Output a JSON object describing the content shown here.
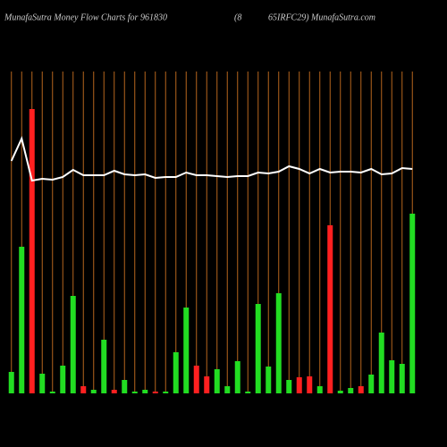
{
  "chart_data": {
    "type": "bar",
    "title": "MunafaSutra  Money Flow  Charts for 961830",
    "subtitle": "(8",
    "source": "65IRFC29) MunafaSutra.com",
    "categories": [
      null,
      null,
      null,
      null,
      null,
      null,
      null,
      null,
      null,
      null,
      null,
      null,
      null,
      null,
      null,
      null,
      null,
      null,
      null,
      null,
      null,
      null,
      null,
      null,
      null,
      null,
      null,
      null,
      null,
      null,
      null,
      null,
      null,
      null,
      null,
      null,
      null,
      null,
      null,
      null
    ],
    "ylim": [
      0,
      360
    ],
    "series": [
      {
        "type": "bar",
        "values": [
          24,
          164,
          318,
          22,
          2,
          31,
          109,
          8,
          4,
          60,
          4,
          15,
          2,
          4,
          2,
          2,
          46,
          96,
          31,
          19,
          27,
          8,
          36,
          2,
          100,
          30,
          112,
          15,
          18,
          19,
          8,
          188,
          3,
          6,
          8,
          21,
          68,
          37,
          33,
          201
        ],
        "colors": [
          "#22dd22",
          "#22dd22",
          "#ff2020",
          "#22dd22",
          "#22dd22",
          "#22dd22",
          "#22dd22",
          "#ff2020",
          "#22dd22",
          "#22dd22",
          "#ff2020",
          "#22dd22",
          "#22dd22",
          "#22dd22",
          "#ff2020",
          "#22dd22",
          "#22dd22",
          "#22dd22",
          "#ff2020",
          "#ff2020",
          "#22dd22",
          "#22dd22",
          "#22dd22",
          "#22dd22",
          "#22dd22",
          "#22dd22",
          "#22dd22",
          "#22dd22",
          "#ff2020",
          "#ff2020",
          "#22dd22",
          "#ff2020",
          "#22dd22",
          "#22dd22",
          "#ff2020",
          "#22dd22",
          "#22dd22",
          "#22dd22",
          "#22dd22",
          "#22dd22"
        ]
      },
      {
        "type": "line",
        "color": "#ffffff",
        "values": [
          260,
          285,
          238,
          240,
          239,
          242,
          250,
          244,
          244,
          244,
          249,
          245,
          244,
          245,
          241,
          242,
          242,
          247,
          244,
          244,
          243,
          242,
          243,
          243,
          247,
          246,
          248,
          254,
          251,
          246,
          251,
          247,
          248,
          248,
          247,
          251,
          245,
          246,
          252,
          251
        ]
      }
    ],
    "grid_color": "#b5651d"
  }
}
